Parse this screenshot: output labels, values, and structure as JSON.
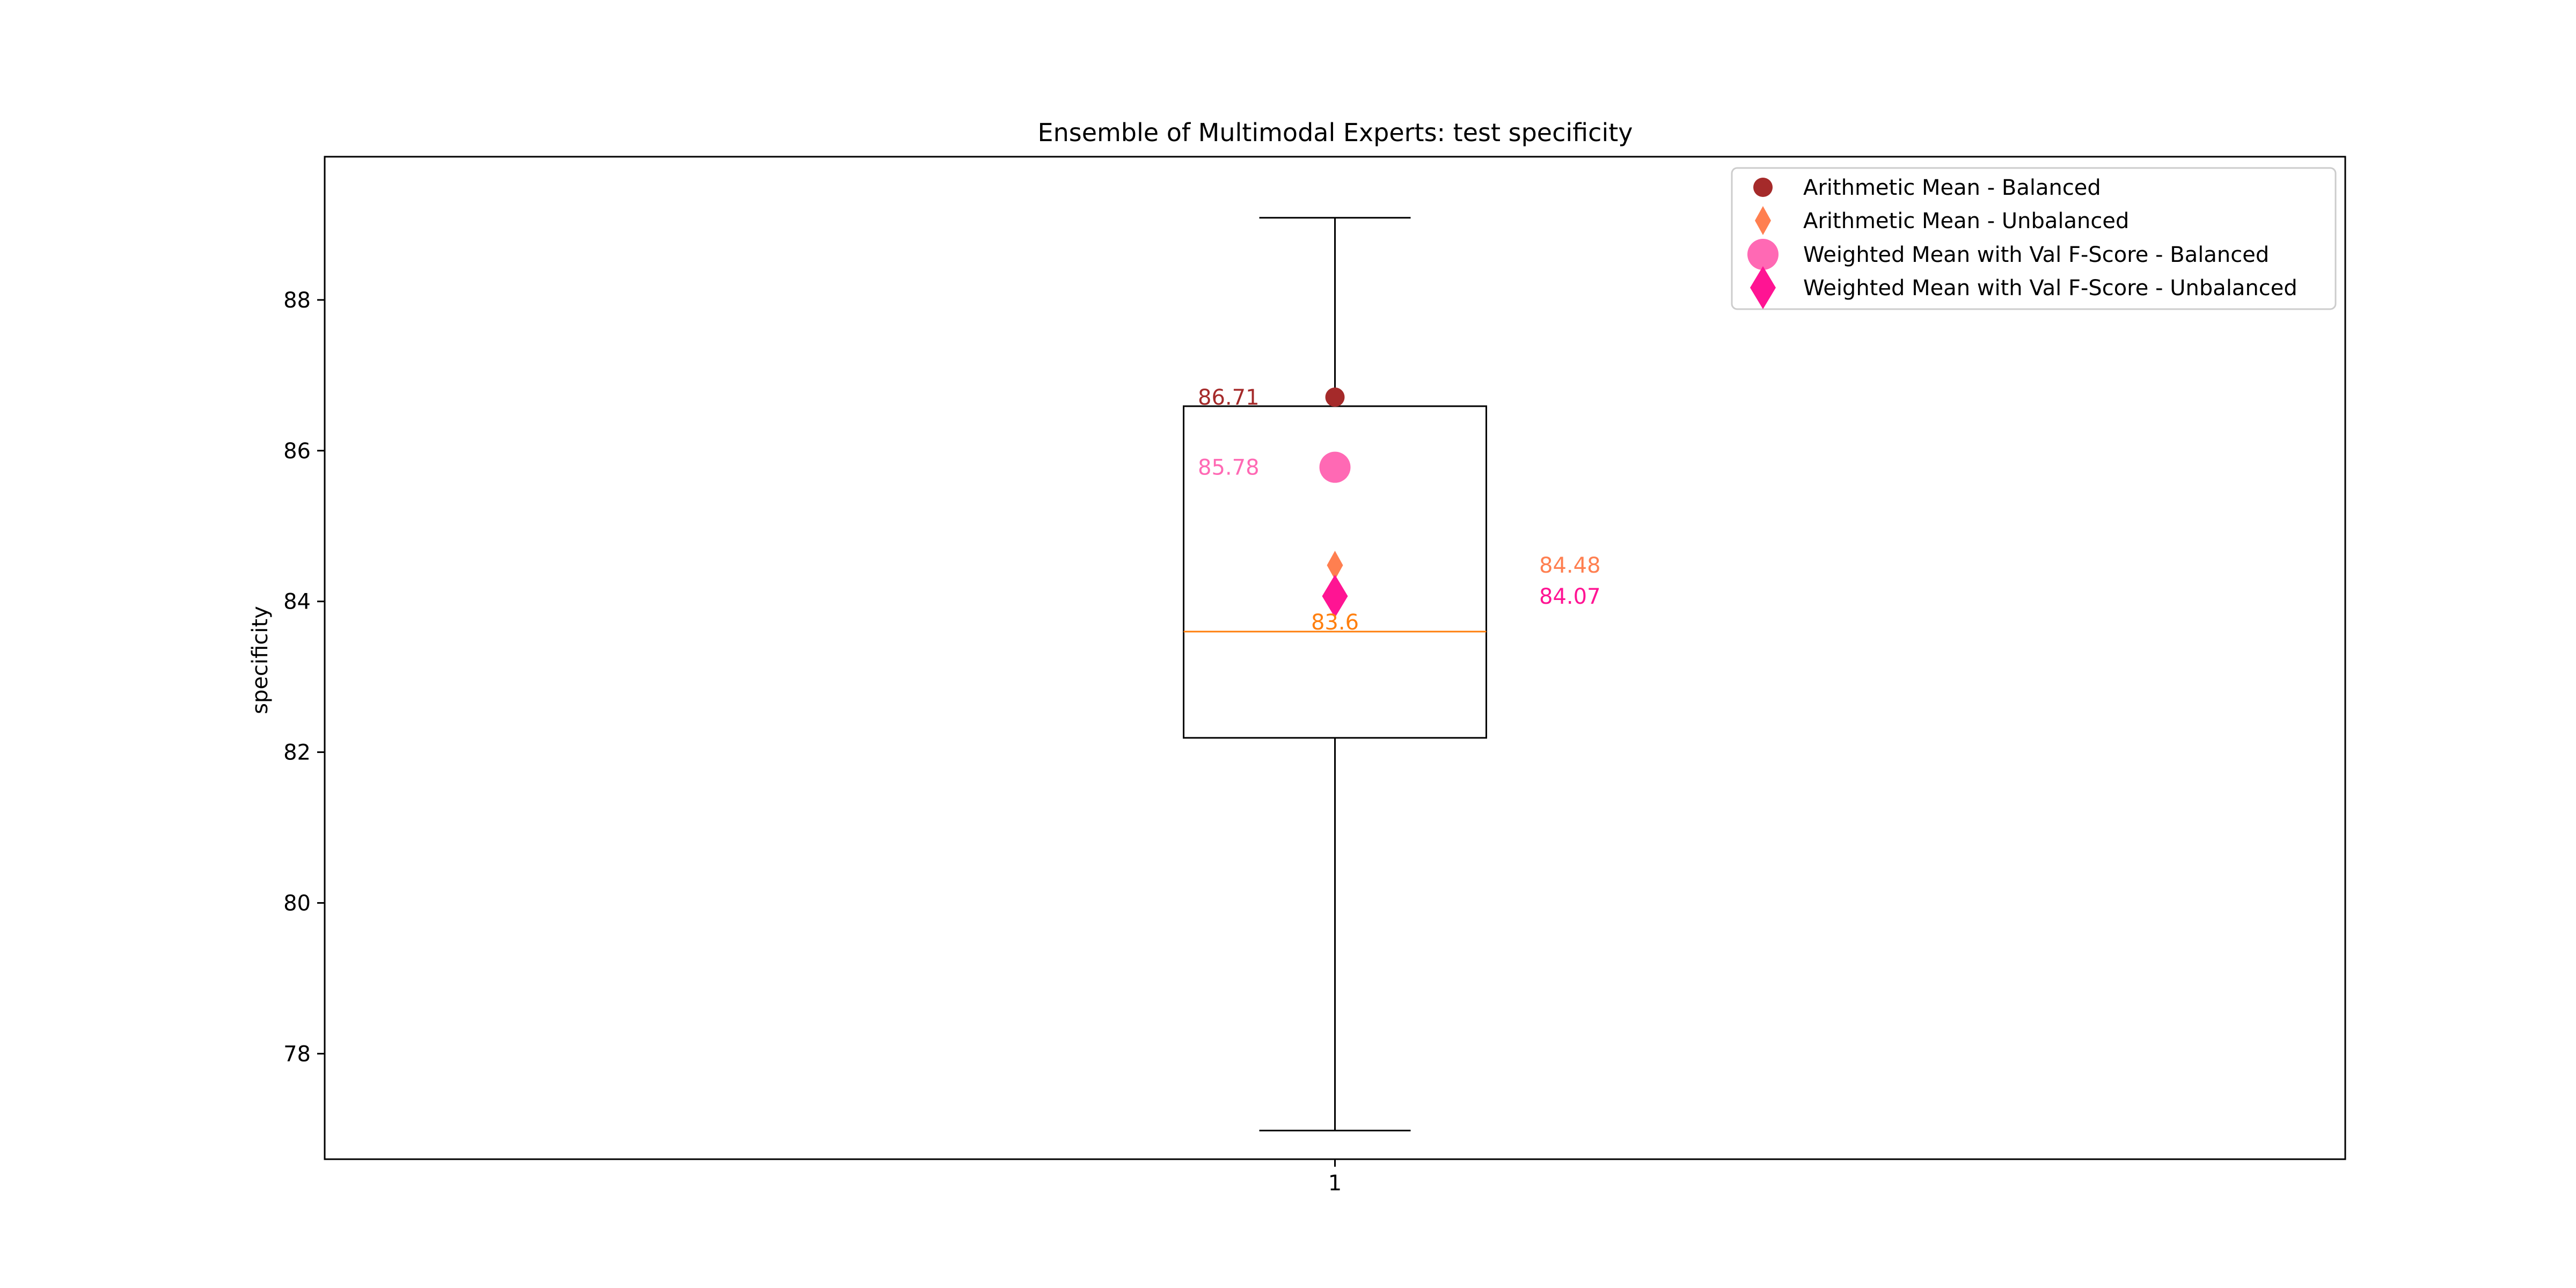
{
  "chart_data": {
    "type": "box",
    "title": "Ensemble of Multimodal Experts: test specificity",
    "ylabel": "specificity",
    "xlabel": "",
    "ylim": [
      76.6,
      89.9
    ],
    "yticks": [
      78,
      80,
      82,
      84,
      86,
      88
    ],
    "categories": [
      "1"
    ],
    "box": {
      "whisker_low": 76.98,
      "q1": 82.19,
      "median": 83.6,
      "q3": 86.59,
      "whisker_high": 89.09,
      "median_label": "83.6"
    },
    "markers": [
      {
        "name": "Arithmetic Mean - Balanced",
        "value": 86.71,
        "label": "86.71",
        "marker": "circle",
        "color": "#a52a2a",
        "label_side": "left"
      },
      {
        "name": "Arithmetic Mean - Unbalanced",
        "value": 84.48,
        "label": "84.48",
        "marker": "diamond",
        "color": "#ff7f50",
        "label_side": "right"
      },
      {
        "name": "Weighted Mean with Val F-Score - Balanced",
        "value": 85.78,
        "label": "85.78",
        "marker": "circle-large",
        "color": "#ff69b4",
        "label_side": "left"
      },
      {
        "name": "Weighted Mean with Val F-Score - Unbalanced",
        "value": 84.07,
        "label": "84.07",
        "marker": "diamond-large",
        "color": "#ff1493",
        "label_side": "right"
      }
    ],
    "colors": {
      "median": "#ff7f0e",
      "box": "#000000"
    },
    "grid": false,
    "legend_position": "top-right"
  }
}
